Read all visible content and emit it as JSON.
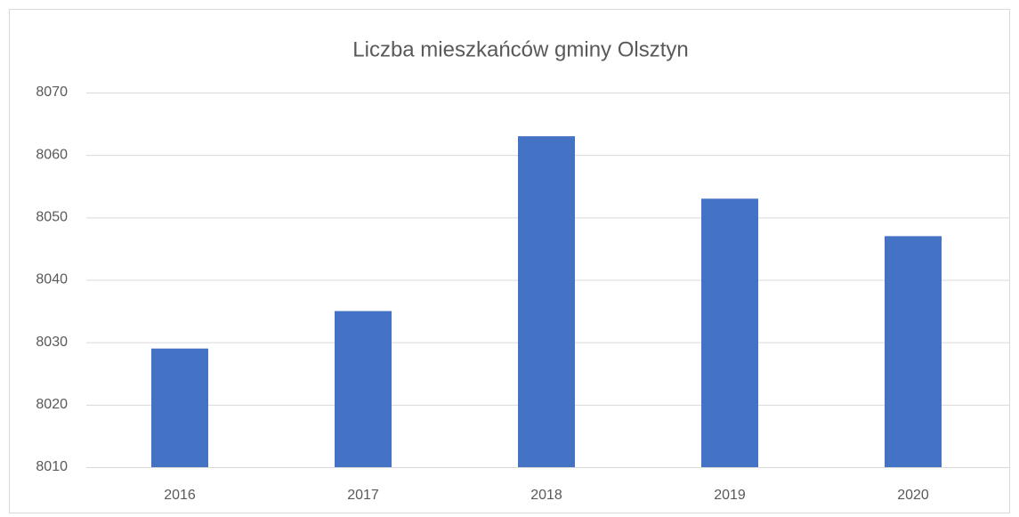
{
  "chart_data": {
    "type": "bar",
    "title": "Liczba mieszkańców gminy Olsztyn",
    "categories": [
      "2016",
      "2017",
      "2018",
      "2019",
      "2020"
    ],
    "values": [
      8029,
      8035,
      8063,
      8053,
      8047
    ],
    "color": "#4472c4",
    "ylim": [
      8010,
      8070
    ],
    "yticks": [
      8010,
      8020,
      8030,
      8040,
      8050,
      8060,
      8070
    ],
    "grid": true
  }
}
